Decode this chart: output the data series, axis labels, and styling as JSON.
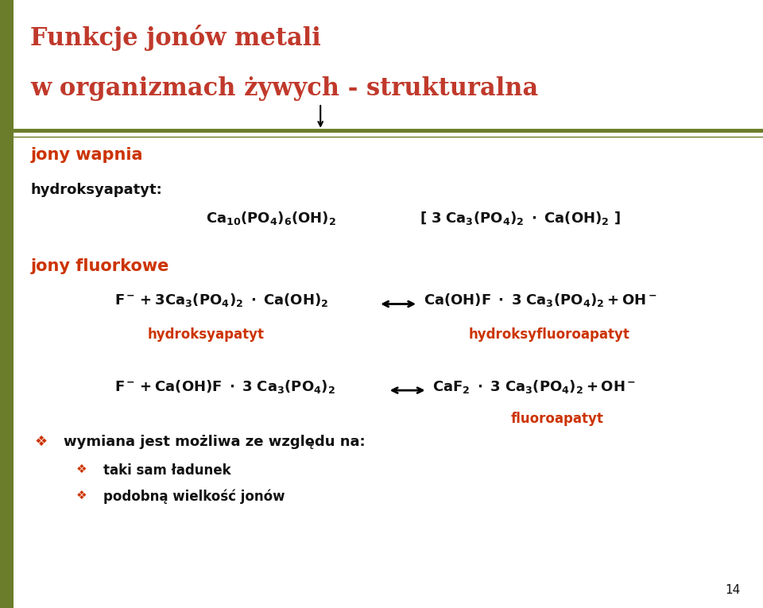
{
  "bg_color": "#ffffff",
  "left_bar_color": "#6b7c2a",
  "title_color": "#c0392b",
  "title_line1": "Funkcje jonów metali",
  "title_line2": "w organizmach żywych - strukturalna",
  "title_fontsize": 22,
  "orange_color": "#cc3300",
  "black_color": "#111111",
  "section_label_color": "#cc3300",
  "page_number": "14",
  "left_bar_width": 0.018
}
